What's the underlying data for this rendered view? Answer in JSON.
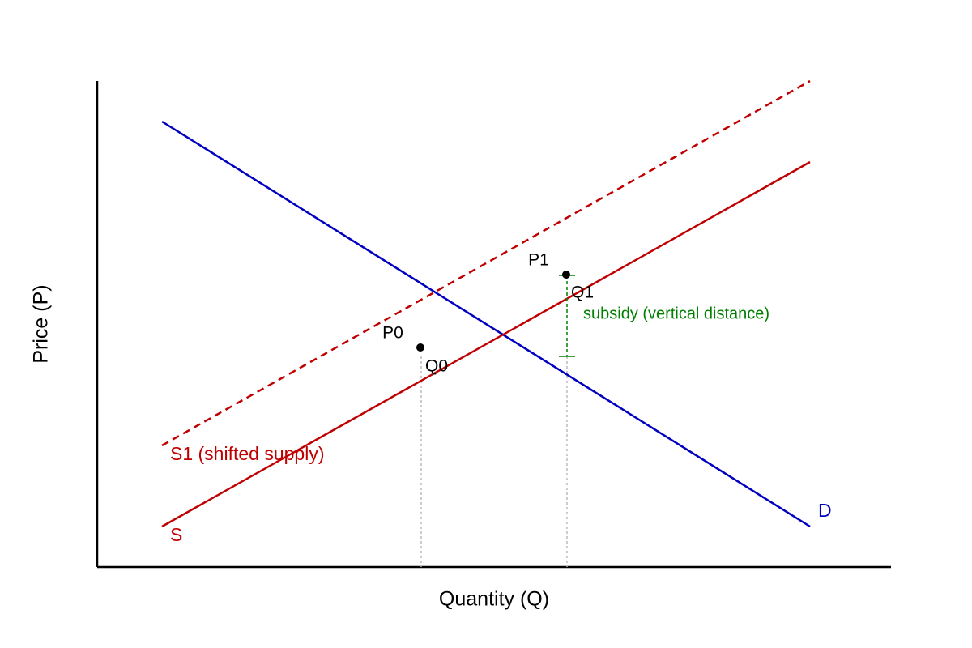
{
  "axes": {
    "x_label": "Quantity (Q)",
    "y_label": "Price (P)"
  },
  "curves": {
    "demand": "D",
    "supply": "S",
    "shifted_supply": "S1 (shifted supply)"
  },
  "points": {
    "p0": "P0",
    "q0": "Q0",
    "p1": "P1",
    "q1": "Q1"
  },
  "annotation": "subsidy (vertical distance)"
}
